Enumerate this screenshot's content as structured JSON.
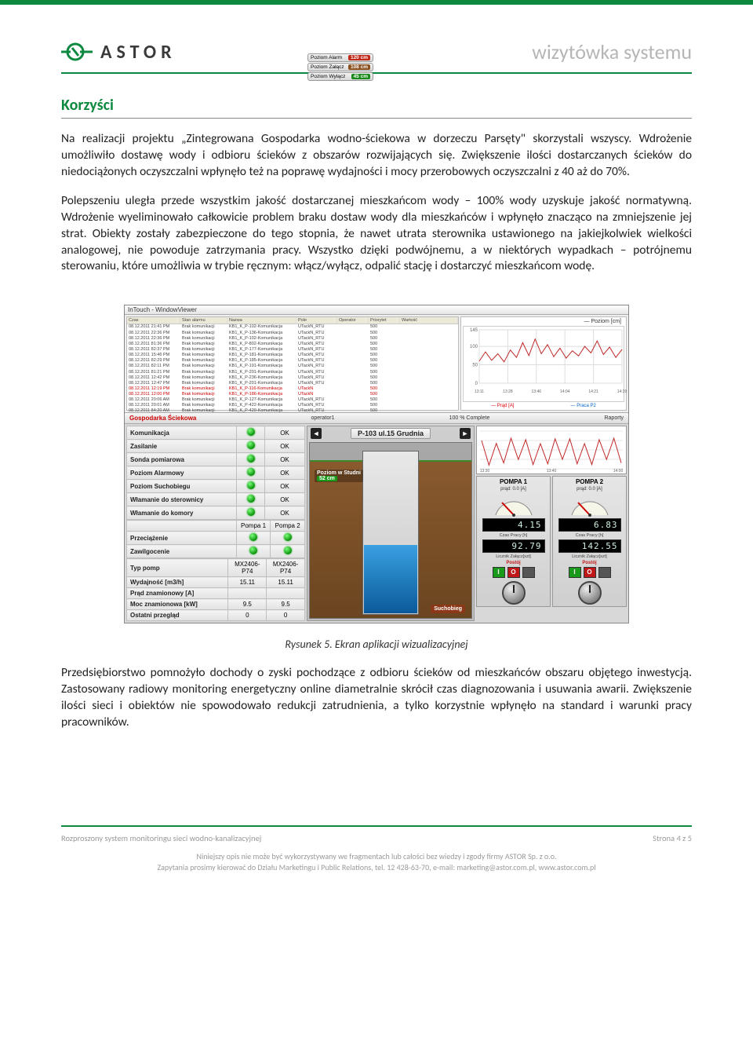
{
  "header": {
    "logo_text": "ASTOR",
    "doc_type": "wizytówka systemu"
  },
  "section": {
    "title": "Korzyści"
  },
  "paragraphs": {
    "p1": "Na realizacji projektu „Zintegrowana Gospodarka wodno-ściekowa w dorzeczu Parsęty\" skorzystali wszyscy. Wdrożenie umożliwiło dostawę wody i odbioru ścieków z obszarów rozwijających się. Zwiększenie ilości dostarczanych ścieków do niedociążonych oczyszczalni wpłynęło też na poprawę wydajności i mocy przerobowych oczyszczalni z 40 aż do 70%.",
    "p2": "Polepszeniu uległa przede wszystkim jakość dostarczanej mieszkańcom wody – 100% wody uzyskuje jakość normatywną. Wdrożenie wyeliminowało całkowicie problem braku dostaw wody dla mieszkańców i wpłynęło znacząco na zmniejszenie jej strat. Obiekty zostały zabezpieczone do tego stopnia, że nawet utrata sterownika ustawionego na jakiejkolwiek wielkości analogowej, nie powoduje zatrzymania pracy. Wszystko dzięki podwójnemu, a w niektórych wypadkach – potrójnemu sterowaniu, które umożliwia w trybie ręcznym: włącz/wyłącz, odpalić stację i dostarczyć mieszkańcom wodę.",
    "p3": "Przedsiębiorstwo pomnożyło dochody o zyski pochodzące z odbioru ścieków od mieszkańców obszaru objętego inwestycją. Zastosowany radiowy monitoring energetyczny online diametralnie skrócił czas diagnozowania i usuwania awarii. Zwiększenie ilości sieci i obiektów nie spowodowało redukcji zatrudnienia, a tylko korzystnie wpłynęło na standard i warunki pracy pracowników."
  },
  "caption": "Rysunek 5. Ekran aplikacji wizualizacyjnej",
  "scada": {
    "window_title": "InTouch - WindowViewer",
    "alarm_headers": {
      "c1": "Czas",
      "c2": "Stan alarmu",
      "c3": "Nazwa",
      "c4": "Pole",
      "c5": "Operator",
      "c6": "Priorytet",
      "c7": "Wartość"
    },
    "alarm_rows": [
      {
        "c1": "08.12.2011 21:41 PM",
        "c2": "Brak komunikacji",
        "c3": "KB1_K_P-102-Komunikacja",
        "c4": "UTackN_RTU",
        "c5": "",
        "c6": "500",
        "red": false
      },
      {
        "c1": "08.12.2011 22:36 PM",
        "c2": "Brak komunikacji",
        "c3": "KB1_K_P-136-Komunikacja",
        "c4": "UTackN_RTU",
        "c5": "",
        "c6": "500",
        "red": false
      },
      {
        "c1": "08.12.2011 22:36 PM",
        "c2": "Brak komunikacji",
        "c3": "KB1_K_P-102-Komunikacja",
        "c4": "UTackN_RTU",
        "c5": "",
        "c6": "500",
        "red": false
      },
      {
        "c1": "08.12.2011 81:36 PM",
        "c2": "Brak komunikacji",
        "c3": "KB1_K_P-802-Komunikacja",
        "c4": "UTackN_RTU",
        "c5": "",
        "c6": "500",
        "red": false
      },
      {
        "c1": "08.12.2011 82:37 PM",
        "c2": "Brak komunikacji",
        "c3": "KB1_K_P-177-Komunikacja",
        "c4": "UTackN_RTU",
        "c5": "",
        "c6": "500",
        "red": false
      },
      {
        "c1": "08.12.2011 15:46 PM",
        "c2": "Brak komunikacji",
        "c3": "KB1_K_P-181-Komunikacja",
        "c4": "UTackN_RTU",
        "c5": "",
        "c6": "500",
        "red": false
      },
      {
        "c1": "08.12.2011 82:29 PM",
        "c2": "Brak komunikacji",
        "c3": "KB1_K_P-185-Komunikacja",
        "c4": "UTackN_RTU",
        "c5": "",
        "c6": "500",
        "red": false
      },
      {
        "c1": "08.12.2011 82:11 PM",
        "c2": "Brak komunikacji",
        "c3": "KB1_K_P-191-Komunikacja",
        "c4": "UTackN_RTU",
        "c5": "",
        "c6": "500",
        "red": false
      },
      {
        "c1": "08.12.2011 81:21 PM",
        "c2": "Brak komunikacji",
        "c3": "KB1_K_P-201-Komunikacja",
        "c4": "UTackN_RTU",
        "c5": "",
        "c6": "500",
        "red": false
      },
      {
        "c1": "08.12.2011 12:42 PM",
        "c2": "Brak komunikacji",
        "c3": "KB1_K_P-236-Komunikacja",
        "c4": "UTackN_RTU",
        "c5": "",
        "c6": "500",
        "red": false
      },
      {
        "c1": "08.12.2011 12:47 PM",
        "c2": "Brak komunikacji",
        "c3": "KB1_K_P-201-Komunikacja",
        "c4": "UTackN_RTU",
        "c5": "",
        "c6": "500",
        "red": false
      },
      {
        "c1": "08.12.2011 12:19 PM",
        "c2": "Brak komunikacji",
        "c3": "KB1_K_P-116-Komunikacja",
        "c4": "UTackN",
        "c5": "",
        "c6": "500",
        "red": true
      },
      {
        "c1": "08.12.2011 12:00 PM",
        "c2": "Brak komunikacji",
        "c3": "KB1_K_P-186-Komunikacja",
        "c4": "UTackN",
        "c5": "",
        "c6": "500",
        "red": true
      },
      {
        "c1": "08.12.2011 20:06 AM",
        "c2": "Brak komunikacji",
        "c3": "KB1_K_P-127-Komunikacja",
        "c4": "UTackN_RTU",
        "c5": "",
        "c6": "500",
        "red": false
      },
      {
        "c1": "08.12.2011 20:01 AM",
        "c2": "Brak komunikacji",
        "c3": "KB1_K_P-422-Komunikacja",
        "c4": "UTackN_RTU",
        "c5": "",
        "c6": "500",
        "red": false
      },
      {
        "c1": "08.12.2011 84:20 AM",
        "c2": "Brak komunikacji",
        "c3": "KB1_K_P-420-Komunikacja",
        "c4": "UTackN_RTU",
        "c5": "",
        "c6": "500",
        "red": false
      }
    ],
    "trend": {
      "title": "— Poziom [cm]",
      "ylim": [
        0,
        145
      ],
      "yticks": [
        0,
        50,
        100,
        145
      ],
      "xticks": [
        "13:11",
        "13:28",
        "13:46",
        "14:04",
        "14:21",
        "14:39"
      ],
      "line_color": "#c02828",
      "grid_color": "#dddddd",
      "points": [
        60,
        85,
        62,
        80,
        58,
        90,
        70,
        110,
        75,
        120,
        80,
        105,
        72,
        95,
        68,
        88,
        74,
        100,
        82,
        115,
        78,
        98,
        70,
        92
      ],
      "legend": {
        "a": "— Prąd [A]",
        "b": "— Praca P2"
      }
    },
    "midbar": {
      "left": "Gospodarka Ściekowa",
      "op": "operator1",
      "complete": "100 % Complete",
      "rap": "Raporty"
    },
    "status_rows": [
      {
        "label": "Komunikacja",
        "ok": "OK"
      },
      {
        "label": "Zasilanie",
        "ok": "OK"
      },
      {
        "label": "Sonda pomiarowa",
        "ok": "OK"
      },
      {
        "label": "Poziom Alarmowy",
        "ok": "OK"
      },
      {
        "label": "Poziom Suchobiegu",
        "ok": "OK"
      },
      {
        "label": "Włamanie do sterownicy",
        "ok": "OK"
      },
      {
        "label": "Włamanie do komory",
        "ok": "OK"
      }
    ],
    "status_rows2": [
      {
        "label": "Przeciążenie"
      },
      {
        "label": "Zawilgocenie"
      }
    ],
    "pump_header": {
      "c1": "",
      "c2": "Pompa 1",
      "c3": "Pompa 2"
    },
    "pump_rows": [
      {
        "label": "Typ pomp",
        "v1": "MX2406-P74",
        "v2": "MX2406-P74"
      },
      {
        "label": "Wydajność        [m3/h]",
        "v1": "15.11",
        "v2": "15.11"
      },
      {
        "label": "Prąd znamionowy  [A]",
        "v1": "",
        "v2": ""
      },
      {
        "label": "Moc znamionowa  [kW]",
        "v1": "9.5",
        "v2": "9.5"
      },
      {
        "label": "Ostatni przegląd",
        "v1": "0",
        "v2": "0"
      }
    ],
    "well": {
      "title": "P-103 ul.15 Grudnia",
      "poziom_studni_label": "Poziom w Studni",
      "poziom_studni_val": "52  cm",
      "suchobieg": "Suchobieg"
    },
    "levels": {
      "alarm": {
        "label": "Poziom Alarm",
        "val": "120 cm",
        "class": "pv-red"
      },
      "zalacz": {
        "label": "Poziom Załącz",
        "val": "108 cm",
        "class": "pv-brown"
      },
      "wylacz": {
        "label": "Poziom Wyłącz",
        "val": "45 cm",
        "class": "pv-green"
      }
    },
    "pumps": {
      "p1": {
        "title": "POMPA 1",
        "amp": "prąd: 0.0 [A]",
        "lcd_top": "4.15",
        "lcd_top_lbl": "Czas Pracy [h]",
        "lcd_bot": "92.79",
        "lcd_bot_lbl": "Licznik Załącz[szt]",
        "postoj": "Postój"
      },
      "p2": {
        "title": "POMPA 2",
        "amp": "prąd: 0.0 [A]",
        "lcd_top": "6.83",
        "lcd_top_lbl": "Czas Pracy [h]",
        "lcd_bot": "142.55",
        "lcd_bot_lbl": "Licznik Załącz[szt]",
        "postoj": "Postój"
      }
    },
    "mini_xticks": [
      "13:30",
      "13:40",
      "14:00"
    ]
  },
  "footer": {
    "left": "Rozproszony system monitoringu sieci wodno-kanalizacyjnej",
    "right": "Strona 4 z 5",
    "line1": "Niniejszy opis nie może być wykorzystywany we fragmentach lub całości bez wiedzy i zgody firmy ASTOR Sp. z o.o.",
    "line2": "Zapytania prosimy kierować do  Działu Marketingu i Public Relations, tel. 12 428-63-70, e-mail: marketing@astor.com.pl, www.astor.com.pl"
  },
  "colors": {
    "brand": "#0d8a3f",
    "header_grey": "#b5b5b5"
  }
}
